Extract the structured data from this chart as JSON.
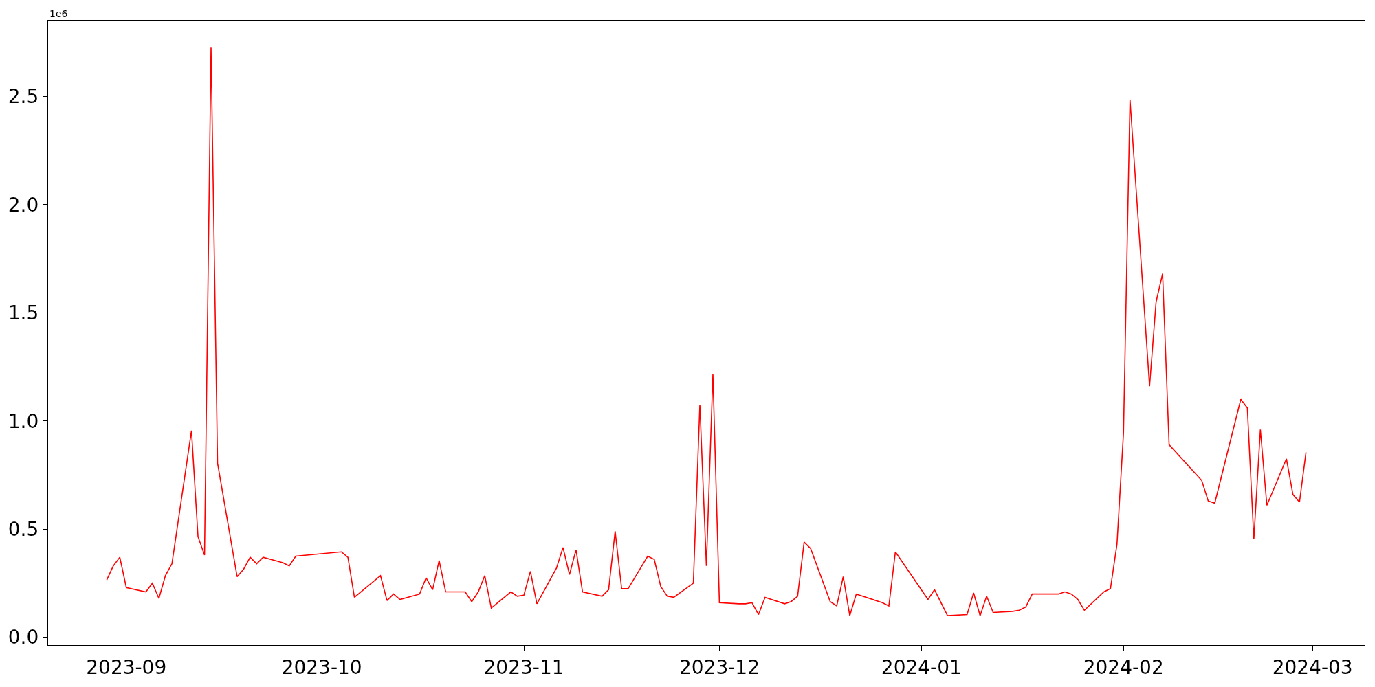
{
  "chart_data": {
    "type": "line",
    "annotations": [
      "1e6"
    ],
    "grid": false,
    "marker": "none",
    "line_style": "solid",
    "xlim": [
      "2023-08-20",
      "2024-03-09"
    ],
    "xticks": [
      {
        "value": "2023-09-01",
        "label": "2023-09"
      },
      {
        "value": "2023-10-01",
        "label": "2023-10"
      },
      {
        "value": "2023-11-01",
        "label": "2023-11"
      },
      {
        "value": "2023-12-01",
        "label": "2023-12"
      },
      {
        "value": "2024-01-01",
        "label": "2024-01"
      },
      {
        "value": "2024-02-01",
        "label": "2024-02"
      },
      {
        "value": "2024-03-01",
        "label": "2024-03"
      }
    ],
    "ylim": [
      -0.036,
      2.85
    ],
    "yticks": [
      {
        "value": 0,
        "label": "0.0"
      },
      0.5,
      {
        "value": 1,
        "label": "1.0"
      },
      1.5,
      {
        "value": 2,
        "label": "2.0"
      },
      2.5
    ],
    "x": [
      "2023-08-29",
      "2023-08-30",
      "2023-08-31",
      "2023-09-01",
      "2023-09-04",
      "2023-09-05",
      "2023-09-06",
      "2023-09-07",
      "2023-09-08",
      "2023-09-11",
      "2023-09-12",
      "2023-09-13",
      "2023-09-14",
      "2023-09-15",
      "2023-09-18",
      "2023-09-19",
      "2023-09-20",
      "2023-09-21",
      "2023-09-22",
      "2023-09-25",
      "2023-09-26",
      "2023-09-27",
      "2023-10-04",
      "2023-10-05",
      "2023-10-06",
      "2023-10-10",
      "2023-10-11",
      "2023-10-12",
      "2023-10-13",
      "2023-10-16",
      "2023-10-17",
      "2023-10-18",
      "2023-10-19",
      "2023-10-20",
      "2023-10-23",
      "2023-10-24",
      "2023-10-25",
      "2023-10-26",
      "2023-10-27",
      "2023-10-30",
      "2023-10-31",
      "2023-11-01",
      "2023-11-02",
      "2023-11-03",
      "2023-11-06",
      "2023-11-07",
      "2023-11-08",
      "2023-11-09",
      "2023-11-10",
      "2023-11-13",
      "2023-11-14",
      "2023-11-15",
      "2023-11-16",
      "2023-11-17",
      "2023-11-20",
      "2023-11-21",
      "2023-11-22",
      "2023-11-23",
      "2023-11-24",
      "2023-11-27",
      "2023-11-28",
      "2023-11-29",
      "2023-11-30",
      "2023-12-01",
      "2023-12-04",
      "2023-12-05",
      "2023-12-06",
      "2023-12-07",
      "2023-12-08",
      "2023-12-11",
      "2023-12-12",
      "2023-12-13",
      "2023-12-14",
      "2023-12-15",
      "2023-12-18",
      "2023-12-19",
      "2023-12-20",
      "2023-12-21",
      "2023-12-22",
      "2023-12-26",
      "2023-12-27",
      "2023-12-28",
      "2024-01-02",
      "2024-01-03",
      "2024-01-05",
      "2024-01-08",
      "2024-01-09",
      "2024-01-10",
      "2024-01-11",
      "2024-01-12",
      "2024-01-15",
      "2024-01-16",
      "2024-01-17",
      "2024-01-18",
      "2024-01-22",
      "2024-01-23",
      "2024-01-24",
      "2024-01-25",
      "2024-01-26",
      "2024-01-29",
      "2024-01-30",
      "2024-01-31",
      "2024-02-01",
      "2024-02-02",
      "2024-02-05",
      "2024-02-06",
      "2024-02-07",
      "2024-02-08",
      "2024-02-13",
      "2024-02-14",
      "2024-02-15",
      "2024-02-19",
      "2024-02-20",
      "2024-02-21",
      "2024-02-22",
      "2024-02-23",
      "2024-02-26",
      "2024-02-27",
      "2024-02-28",
      "2024-02-29"
    ],
    "series": [
      {
        "color": "#ff0000",
        "values": [
          0.265,
          0.33,
          0.37,
          0.23,
          0.21,
          0.25,
          0.18,
          0.285,
          0.34,
          0.955,
          0.465,
          0.38,
          2.725,
          0.805,
          0.28,
          0.315,
          0.37,
          0.34,
          0.37,
          0.345,
          0.33,
          0.375,
          0.395,
          0.37,
          0.185,
          0.285,
          0.17,
          0.2,
          0.175,
          0.2,
          0.275,
          0.22,
          0.355,
          0.21,
          0.21,
          0.165,
          0.21,
          0.285,
          0.135,
          0.21,
          0.19,
          0.195,
          0.305,
          0.155,
          0.32,
          0.415,
          0.29,
          0.405,
          0.21,
          0.19,
          0.22,
          0.49,
          0.225,
          0.225,
          0.375,
          0.36,
          0.235,
          0.19,
          0.185,
          0.25,
          1.075,
          0.33,
          1.215,
          0.16,
          0.155,
          0.155,
          0.16,
          0.105,
          0.185,
          0.155,
          0.165,
          0.19,
          0.44,
          0.41,
          0.165,
          0.145,
          0.28,
          0.1,
          0.2,
          0.16,
          0.145,
          0.395,
          0.175,
          0.22,
          0.1,
          0.105,
          0.205,
          0.1,
          0.19,
          0.115,
          0.12,
          0.125,
          0.14,
          0.2,
          0.2,
          0.21,
          0.2,
          0.175,
          0.125,
          0.21,
          0.225,
          0.43,
          0.945,
          2.485,
          1.16,
          1.55,
          1.68,
          0.89,
          0.725,
          0.63,
          0.62,
          1.1,
          1.06,
          0.455,
          0.96,
          0.61,
          0.825,
          0.66,
          0.625,
          0.855
        ]
      }
    ]
  }
}
